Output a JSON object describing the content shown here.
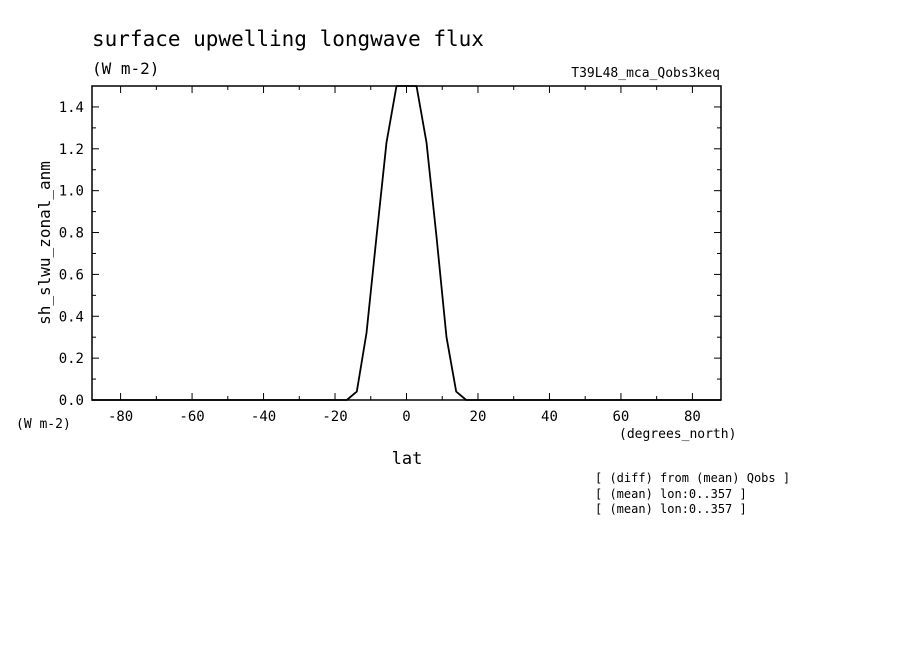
{
  "chart_data": {
    "type": "line",
    "title": "surface upwelling longwave flux",
    "subtitle": "(W m-2)",
    "run_label": "T39L48_mca_Qobs3keq",
    "xlabel": "lat",
    "x_units": "(degrees_north)",
    "ylabel": "sh_slwu_zonal_anm",
    "y_units": "(W m-2)",
    "xlim": [
      -88,
      88
    ],
    "ylim": [
      0,
      1.5
    ],
    "x_ticks": [
      -80,
      -60,
      -40,
      -20,
      0,
      20,
      40,
      60,
      80
    ],
    "x_tick_labels": [
      "-80",
      "-60",
      "-40",
      "-20",
      "0",
      "20",
      "40",
      "60",
      "80"
    ],
    "y_ticks": [
      0,
      0.2,
      0.4,
      0.6,
      0.8,
      1.0,
      1.2,
      1.4
    ],
    "y_tick_labels": [
      "0.0",
      "0.2",
      "0.4",
      "0.6",
      "0.8",
      "1.0",
      "1.2",
      "1.4"
    ],
    "grid": false,
    "series": [
      {
        "x": [
          -88,
          -80,
          -70,
          -60,
          -50,
          -40,
          -30,
          -20,
          -16.7,
          -13.9,
          -11.2,
          -8.4,
          -5.6,
          -2.8,
          -1.5,
          1.5,
          2.8,
          5.6,
          8.4,
          11.2,
          13.9,
          16.7,
          20,
          30,
          40,
          50,
          60,
          70,
          80,
          88
        ],
        "y": [
          0,
          0,
          0,
          0,
          0,
          0,
          0,
          0,
          0,
          0.04,
          0.32,
          0.78,
          1.23,
          1.5,
          1.5,
          1.5,
          1.5,
          1.23,
          0.78,
          0.3,
          0.04,
          0,
          0,
          0,
          0,
          0,
          0,
          0,
          0,
          0
        ]
      }
    ],
    "notes": [
      "[ (diff) from (mean) Qobs ]",
      "[ (mean) lon:0..357 ]",
      "[ (mean) lon:0..357 ]"
    ]
  }
}
